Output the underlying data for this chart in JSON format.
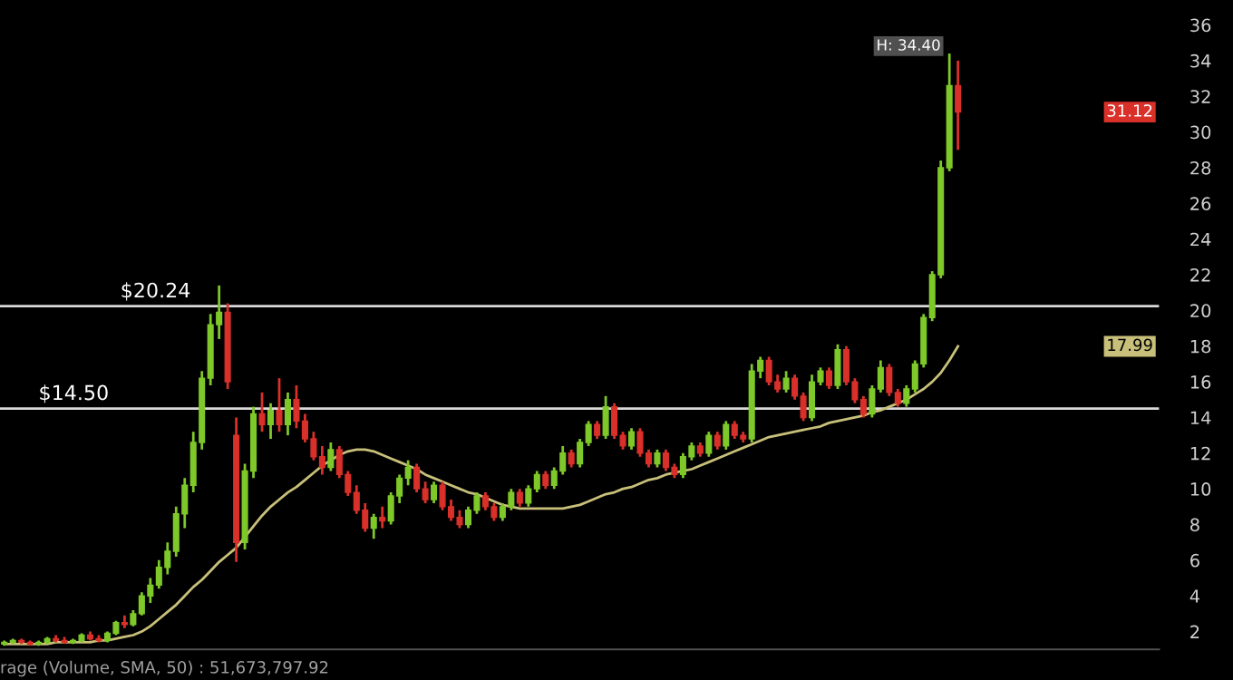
{
  "chart_data": {
    "type": "candlestick",
    "categories": [
      null,
      null,
      null,
      null,
      null,
      null,
      null,
      null,
      null,
      null,
      null,
      null,
      null,
      null,
      null,
      null,
      null,
      null,
      null,
      null,
      null,
      null,
      null,
      null,
      null,
      null,
      null,
      null,
      null,
      null,
      null,
      null,
      null,
      null,
      null,
      null,
      null,
      null,
      null,
      null,
      null,
      null,
      null,
      null,
      null,
      null,
      null,
      null,
      null,
      null,
      null,
      null,
      null,
      null,
      null,
      null,
      null,
      null,
      null,
      null,
      null,
      null,
      null,
      null,
      null,
      null,
      null,
      null,
      null,
      null,
      null,
      null,
      null,
      null,
      null,
      null,
      null,
      null,
      null,
      null,
      null,
      null,
      null,
      null,
      null,
      null,
      null,
      null,
      null,
      null,
      null,
      null,
      null,
      null,
      null,
      null,
      null,
      null,
      null,
      null,
      null,
      null,
      null,
      null,
      null,
      null,
      null,
      null,
      null,
      null,
      null,
      null
    ],
    "ohlc": [
      [
        1.3,
        1.5,
        1.2,
        1.4
      ],
      [
        1.4,
        1.6,
        1.3,
        1.5
      ],
      [
        1.5,
        1.6,
        1.3,
        1.4
      ],
      [
        1.4,
        1.5,
        1.2,
        1.3
      ],
      [
        1.3,
        1.5,
        1.2,
        1.4
      ],
      [
        1.4,
        1.7,
        1.3,
        1.6
      ],
      [
        1.6,
        1.8,
        1.4,
        1.5
      ],
      [
        1.5,
        1.7,
        1.3,
        1.4
      ],
      [
        1.4,
        1.6,
        1.3,
        1.5
      ],
      [
        1.5,
        1.9,
        1.4,
        1.8
      ],
      [
        1.8,
        2.0,
        1.5,
        1.6
      ],
      [
        1.6,
        1.8,
        1.4,
        1.5
      ],
      [
        1.5,
        2.0,
        1.4,
        1.9
      ],
      [
        1.9,
        2.6,
        1.8,
        2.5
      ],
      [
        2.5,
        2.9,
        2.2,
        2.4
      ],
      [
        2.4,
        3.2,
        2.3,
        3.0
      ],
      [
        3.0,
        4.2,
        2.9,
        4.0
      ],
      [
        4.0,
        5.0,
        3.6,
        4.6
      ],
      [
        4.6,
        6.0,
        4.4,
        5.6
      ],
      [
        5.6,
        7.0,
        5.2,
        6.5
      ],
      [
        6.5,
        9.0,
        6.2,
        8.6
      ],
      [
        8.6,
        10.6,
        7.8,
        10.2
      ],
      [
        10.2,
        13.2,
        9.8,
        12.6
      ],
      [
        12.6,
        16.6,
        12.2,
        16.2
      ],
      [
        16.2,
        19.8,
        15.8,
        19.2
      ],
      [
        19.2,
        21.4,
        18.4,
        19.9
      ],
      [
        19.9,
        20.4,
        15.6,
        16.0
      ],
      [
        13.0,
        14.0,
        5.9,
        7.0
      ],
      [
        7.0,
        11.4,
        6.6,
        11.0
      ],
      [
        11.0,
        14.6,
        10.6,
        14.2
      ],
      [
        14.2,
        15.4,
        13.2,
        13.6
      ],
      [
        13.6,
        14.8,
        12.8,
        14.4
      ],
      [
        14.4,
        16.2,
        13.2,
        13.6
      ],
      [
        13.6,
        15.4,
        13.0,
        15.0
      ],
      [
        15.0,
        15.8,
        13.4,
        13.8
      ],
      [
        13.8,
        14.2,
        12.6,
        12.8
      ],
      [
        12.8,
        13.2,
        11.6,
        11.8
      ],
      [
        11.8,
        12.4,
        10.8,
        11.2
      ],
      [
        11.2,
        12.6,
        11.0,
        12.2
      ],
      [
        12.2,
        12.4,
        10.6,
        10.8
      ],
      [
        10.8,
        11.0,
        9.6,
        9.8
      ],
      [
        9.8,
        10.2,
        8.6,
        8.8
      ],
      [
        8.8,
        9.2,
        7.6,
        7.8
      ],
      [
        7.8,
        8.6,
        7.2,
        8.4
      ],
      [
        8.4,
        9.0,
        7.8,
        8.2
      ],
      [
        8.2,
        9.8,
        8.0,
        9.6
      ],
      [
        9.6,
        10.8,
        9.2,
        10.6
      ],
      [
        10.6,
        11.6,
        10.2,
        11.2
      ],
      [
        11.2,
        11.4,
        9.8,
        10.0
      ],
      [
        10.0,
        10.4,
        9.2,
        9.4
      ],
      [
        9.4,
        10.4,
        9.2,
        10.2
      ],
      [
        10.2,
        10.4,
        8.8,
        9.0
      ],
      [
        9.0,
        9.4,
        8.2,
        8.4
      ],
      [
        8.4,
        8.8,
        7.8,
        8.0
      ],
      [
        8.0,
        9.0,
        7.8,
        8.8
      ],
      [
        8.8,
        9.8,
        8.6,
        9.6
      ],
      [
        9.6,
        9.8,
        8.8,
        9.0
      ],
      [
        9.0,
        9.2,
        8.2,
        8.4
      ],
      [
        8.4,
        9.2,
        8.2,
        9.0
      ],
      [
        9.0,
        10.0,
        8.8,
        9.8
      ],
      [
        9.8,
        10.0,
        9.0,
        9.2
      ],
      [
        9.2,
        10.2,
        9.0,
        10.0
      ],
      [
        10.0,
        11.0,
        9.8,
        10.8
      ],
      [
        10.8,
        11.0,
        10.0,
        10.2
      ],
      [
        10.2,
        11.2,
        10.0,
        11.0
      ],
      [
        11.0,
        12.4,
        10.8,
        12.0
      ],
      [
        12.0,
        12.2,
        11.2,
        11.4
      ],
      [
        11.4,
        12.8,
        11.2,
        12.6
      ],
      [
        12.6,
        13.8,
        12.4,
        13.6
      ],
      [
        13.6,
        13.8,
        12.8,
        13.0
      ],
      [
        13.0,
        15.2,
        12.8,
        14.6
      ],
      [
        14.6,
        14.8,
        12.8,
        13.0
      ],
      [
        13.0,
        13.2,
        12.2,
        12.4
      ],
      [
        12.4,
        13.4,
        12.2,
        13.2
      ],
      [
        13.2,
        13.4,
        11.8,
        12.0
      ],
      [
        12.0,
        12.2,
        11.2,
        11.4
      ],
      [
        11.4,
        12.2,
        11.2,
        12.0
      ],
      [
        12.0,
        12.2,
        11.0,
        11.2
      ],
      [
        11.2,
        11.4,
        10.6,
        10.8
      ],
      [
        10.8,
        12.0,
        10.6,
        11.8
      ],
      [
        11.8,
        12.6,
        11.6,
        12.4
      ],
      [
        12.4,
        12.6,
        11.8,
        12.0
      ],
      [
        12.0,
        13.2,
        11.8,
        13.0
      ],
      [
        13.0,
        13.2,
        12.2,
        12.4
      ],
      [
        12.4,
        13.8,
        12.2,
        13.6
      ],
      [
        13.6,
        13.8,
        12.8,
        13.0
      ],
      [
        13.0,
        13.2,
        12.6,
        12.8
      ],
      [
        12.8,
        17.0,
        12.6,
        16.6
      ],
      [
        16.6,
        17.4,
        16.2,
        17.2
      ],
      [
        17.2,
        17.4,
        15.8,
        16.0
      ],
      [
        16.0,
        16.4,
        15.4,
        15.6
      ],
      [
        15.6,
        16.6,
        15.4,
        16.2
      ],
      [
        16.2,
        16.4,
        15.0,
        15.2
      ],
      [
        15.2,
        15.4,
        13.8,
        14.0
      ],
      [
        14.0,
        16.4,
        13.8,
        16.0
      ],
      [
        16.0,
        16.8,
        15.8,
        16.6
      ],
      [
        16.6,
        16.8,
        15.6,
        15.8
      ],
      [
        15.8,
        18.1,
        15.6,
        17.8
      ],
      [
        17.8,
        18.0,
        15.8,
        16.0
      ],
      [
        16.0,
        16.2,
        14.8,
        15.0
      ],
      [
        15.0,
        15.2,
        14.0,
        14.2
      ],
      [
        14.2,
        15.8,
        14.0,
        15.6
      ],
      [
        15.6,
        17.2,
        15.4,
        16.8
      ],
      [
        16.8,
        17.0,
        15.2,
        15.4
      ],
      [
        15.4,
        15.6,
        14.6,
        14.8
      ],
      [
        14.8,
        15.8,
        14.6,
        15.6
      ],
      [
        15.6,
        17.2,
        15.4,
        17.0
      ],
      [
        17.0,
        19.8,
        16.8,
        19.6
      ],
      [
        19.6,
        22.2,
        19.4,
        22.0
      ],
      [
        22.0,
        28.4,
        21.8,
        28.0
      ],
      [
        28.0,
        34.4,
        27.8,
        32.6
      ],
      [
        32.6,
        34.0,
        29.0,
        31.12
      ]
    ],
    "colors": [
      "#7ec82a",
      "#7ec82a",
      "#d9302a",
      "#d9302a",
      "#7ec82a",
      "#7ec82a",
      "#d9302a",
      "#d9302a",
      "#7ec82a",
      "#7ec82a",
      "#d9302a",
      "#d9302a",
      "#7ec82a",
      "#7ec82a",
      "#d9302a",
      "#7ec82a",
      "#7ec82a",
      "#7ec82a",
      "#7ec82a",
      "#7ec82a",
      "#7ec82a",
      "#7ec82a",
      "#7ec82a",
      "#7ec82a",
      "#7ec82a",
      "#7ec82a",
      "#d9302a",
      "#d9302a",
      "#7ec82a",
      "#7ec82a",
      "#d9302a",
      "#7ec82a",
      "#d9302a",
      "#7ec82a",
      "#d9302a",
      "#d9302a",
      "#d9302a",
      "#d9302a",
      "#7ec82a",
      "#d9302a",
      "#d9302a",
      "#d9302a",
      "#d9302a",
      "#7ec82a",
      "#d9302a",
      "#7ec82a",
      "#7ec82a",
      "#7ec82a",
      "#d9302a",
      "#d9302a",
      "#7ec82a",
      "#d9302a",
      "#d9302a",
      "#d9302a",
      "#7ec82a",
      "#7ec82a",
      "#d9302a",
      "#d9302a",
      "#7ec82a",
      "#7ec82a",
      "#d9302a",
      "#7ec82a",
      "#7ec82a",
      "#d9302a",
      "#7ec82a",
      "#7ec82a",
      "#d9302a",
      "#7ec82a",
      "#7ec82a",
      "#d9302a",
      "#7ec82a",
      "#d9302a",
      "#d9302a",
      "#7ec82a",
      "#d9302a",
      "#d9302a",
      "#7ec82a",
      "#d9302a",
      "#d9302a",
      "#7ec82a",
      "#7ec82a",
      "#d9302a",
      "#7ec82a",
      "#d9302a",
      "#7ec82a",
      "#d9302a",
      "#d9302a",
      "#7ec82a",
      "#7ec82a",
      "#d9302a",
      "#d9302a",
      "#7ec82a",
      "#d9302a",
      "#d9302a",
      "#7ec82a",
      "#7ec82a",
      "#d9302a",
      "#7ec82a",
      "#d9302a",
      "#d9302a",
      "#d9302a",
      "#7ec82a",
      "#7ec82a",
      "#d9302a",
      "#d9302a",
      "#7ec82a",
      "#7ec82a",
      "#7ec82a",
      "#7ec82a",
      "#7ec82a",
      "#7ec82a",
      "#d9302a"
    ],
    "series": [
      {
        "type": "line",
        "color": "#c8c07a",
        "values": [
          1.3,
          1.3,
          1.3,
          1.3,
          1.3,
          1.3,
          1.4,
          1.4,
          1.4,
          1.4,
          1.4,
          1.5,
          1.5,
          1.6,
          1.7,
          1.8,
          2.0,
          2.3,
          2.7,
          3.1,
          3.5,
          4.0,
          4.5,
          4.9,
          5.4,
          5.9,
          6.3,
          6.7,
          7.3,
          7.9,
          8.5,
          9.0,
          9.4,
          9.8,
          10.1,
          10.5,
          10.9,
          11.3,
          11.6,
          11.9,
          12.1,
          12.2,
          12.2,
          12.1,
          11.9,
          11.7,
          11.5,
          11.3,
          11.1,
          10.8,
          10.6,
          10.4,
          10.2,
          10.0,
          9.8,
          9.7,
          9.5,
          9.3,
          9.1,
          9.0,
          8.9,
          8.9,
          8.9,
          8.9,
          8.9,
          8.9,
          9.0,
          9.1,
          9.3,
          9.5,
          9.7,
          9.8,
          10.0,
          10.1,
          10.3,
          10.5,
          10.6,
          10.8,
          10.9,
          11.0,
          11.1,
          11.3,
          11.5,
          11.7,
          11.9,
          12.1,
          12.3,
          12.5,
          12.7,
          12.9,
          13.0,
          13.1,
          13.2,
          13.3,
          13.4,
          13.5,
          13.7,
          13.8,
          13.9,
          14.0,
          14.1,
          14.3,
          14.4,
          14.6,
          14.8,
          15.0,
          15.3,
          15.6,
          16.0,
          16.5,
          17.2,
          17.99
        ]
      }
    ],
    "ylim": [
      1,
      37.4
    ],
    "yticks": [
      2,
      4,
      6,
      8,
      10,
      12,
      14,
      16,
      18,
      20,
      22,
      24,
      26,
      28,
      30,
      32,
      34,
      36
    ],
    "ref_lines": [
      {
        "axis": "y",
        "value": 20.24,
        "label": "$20.24",
        "color": "#d8d8d8"
      },
      {
        "axis": "y",
        "value": 14.5,
        "label": "$14.50",
        "color": "#d8d8d8"
      }
    ],
    "annotations": [
      "H: 34.40",
      "31.12",
      "17.99",
      "rage (Volume, SMA, 50) : 51,673,797.92"
    ],
    "grid": false
  }
}
